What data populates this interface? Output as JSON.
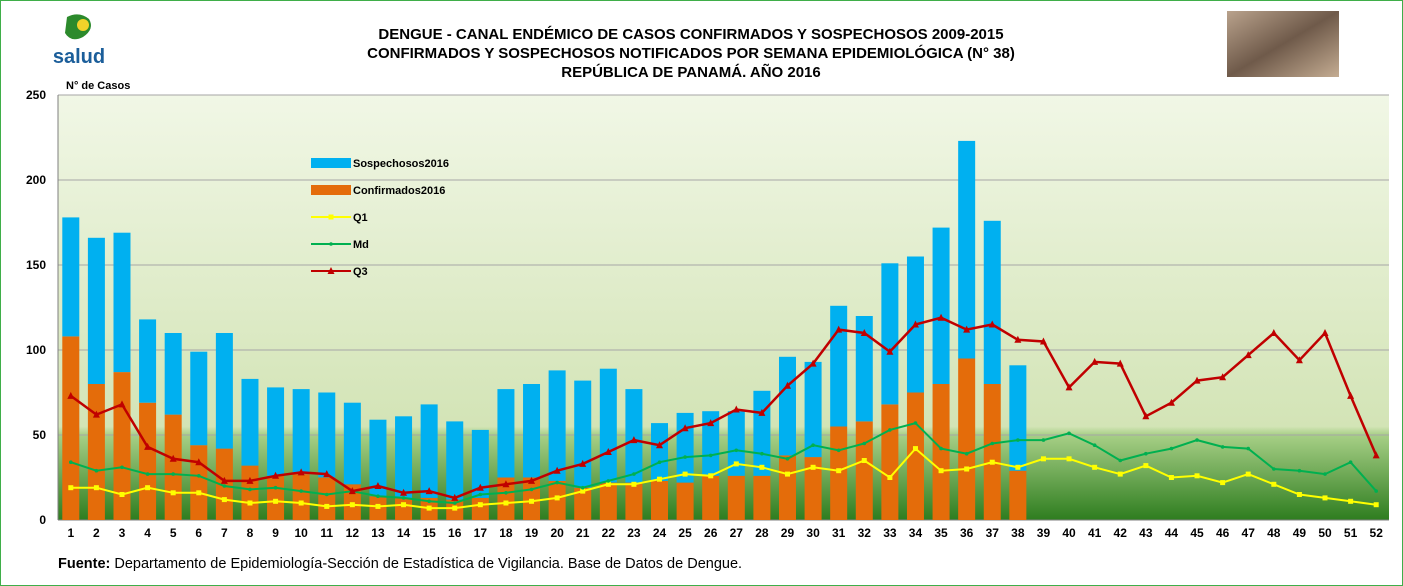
{
  "logo_text": "salud",
  "chart_data": {
    "type": "bar+line",
    "title_lines": [
      "DENGUE - CANAL ENDÉMICO DE CASOS CONFIRMADOS Y SOSPECHOSOS 2009-2015",
      "CONFIRMADOS Y SOSPECHOSOS NOTIFICADOS POR SEMANA EPIDEMIOLÓGICA (N° 38)",
      "REPÚBLICA DE PANAMÁ. AÑO 2016"
    ],
    "y_label": "N° de Casos",
    "categories": [
      "1",
      "2",
      "3",
      "4",
      "5",
      "6",
      "7",
      "8",
      "9",
      "10",
      "11",
      "12",
      "13",
      "14",
      "15",
      "16",
      "17",
      "18",
      "19",
      "20",
      "21",
      "22",
      "23",
      "24",
      "25",
      "26",
      "27",
      "28",
      "29",
      "30",
      "31",
      "32",
      "33",
      "34",
      "35",
      "36",
      "37",
      "38",
      "39",
      "40",
      "41",
      "42",
      "43",
      "44",
      "45",
      "46",
      "47",
      "48",
      "49",
      "50",
      "51",
      "52"
    ],
    "ylim": [
      0,
      250
    ],
    "yticks": [
      0,
      50,
      100,
      150,
      200,
      250
    ],
    "grid": true,
    "legend_position": "upper left",
    "series": [
      {
        "name": "Sospechosos2016",
        "kind": "bar",
        "stacked": true,
        "color": "#00b0f0",
        "values": [
          70,
          86,
          82,
          49,
          48,
          55,
          68,
          51,
          52,
          50,
          50,
          48,
          45,
          48,
          55,
          46,
          40,
          52,
          55,
          65,
          63,
          67,
          55,
          34,
          41,
          38,
          38,
          50,
          58,
          56,
          71,
          62,
          83,
          80,
          92,
          128,
          96,
          62,
          null,
          null,
          null,
          null,
          null,
          null,
          null,
          null,
          null,
          null,
          null,
          null,
          null,
          null
        ]
      },
      {
        "name": "Confirmados2016",
        "kind": "bar",
        "stacked": true,
        "color": "#e46c0a",
        "values": [
          108,
          80,
          87,
          69,
          62,
          44,
          42,
          32,
          26,
          27,
          25,
          21,
          14,
          13,
          13,
          12,
          13,
          25,
          25,
          23,
          19,
          22,
          22,
          23,
          22,
          26,
          26,
          26,
          38,
          37,
          55,
          58,
          68,
          75,
          80,
          95,
          80,
          29,
          null,
          null,
          null,
          null,
          null,
          null,
          null,
          null,
          null,
          null,
          null,
          null,
          null,
          null
        ]
      },
      {
        "name": "Q1",
        "kind": "line",
        "marker": "square",
        "color": "#ffff00",
        "values": [
          19,
          19,
          15,
          19,
          16,
          16,
          12,
          10,
          11,
          10,
          8,
          9,
          8,
          9,
          7,
          7,
          9,
          10,
          11,
          13,
          17,
          21,
          21,
          24,
          27,
          26,
          33,
          31,
          27,
          31,
          29,
          35,
          25,
          42,
          29,
          30,
          34,
          31,
          36,
          36,
          31,
          27,
          32,
          25,
          26,
          22,
          27,
          21,
          15,
          13,
          11,
          9
        ]
      },
      {
        "name": "Md",
        "kind": "line",
        "marker": "dot",
        "color": "#00b050",
        "values": [
          34,
          29,
          31,
          27,
          27,
          26,
          20,
          18,
          19,
          17,
          15,
          17,
          14,
          13,
          11,
          10,
          15,
          16,
          18,
          22,
          19,
          23,
          27,
          34,
          37,
          38,
          41,
          39,
          36,
          44,
          41,
          45,
          53,
          57,
          42,
          39,
          45,
          47,
          47,
          51,
          44,
          35,
          39,
          42,
          47,
          43,
          42,
          30,
          29,
          27,
          34,
          17
        ]
      },
      {
        "name": "Q3",
        "kind": "line",
        "marker": "triangle",
        "color": "#c00000",
        "values": [
          73,
          62,
          68,
          43,
          36,
          34,
          23,
          23,
          26,
          28,
          27,
          17,
          20,
          16,
          17,
          13,
          19,
          21,
          23,
          29,
          33,
          40,
          47,
          44,
          54,
          57,
          65,
          63,
          79,
          92,
          112,
          110,
          99,
          115,
          119,
          112,
          115,
          106,
          105,
          78,
          93,
          92,
          61,
          69,
          82,
          84,
          97,
          110,
          94,
          110,
          73,
          38
        ]
      }
    ],
    "source_label": "Fuente:",
    "source_text": "Departamento de Epidemiología-Sección de Estadística de Vigilancia. Base de Datos de Dengue."
  }
}
